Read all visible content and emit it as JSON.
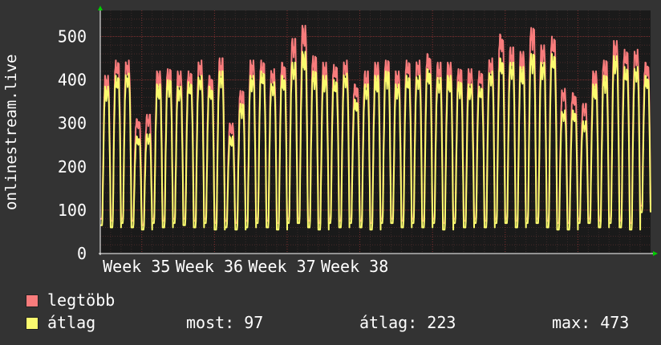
{
  "chart_data": {
    "type": "line",
    "title": "",
    "ylabel": "onlinestream.live",
    "ylim": [
      0,
      560
    ],
    "yticks": [
      0,
      100,
      200,
      300,
      400,
      500
    ],
    "xticks": [
      "Week 35",
      "Week 36",
      "Week 37",
      "Week 38"
    ],
    "grid": true,
    "legend_position": "bottom-left",
    "series": [
      {
        "name": "legtöbb",
        "color": "#f87c7c",
        "daily_peaks": [
          410,
          445,
          445,
          310,
          320,
          420,
          425,
          420,
          420,
          445,
          410,
          450,
          300,
          375,
          445,
          445,
          425,
          440,
          495,
          525,
          455,
          440,
          435,
          445,
          390,
          420,
          440,
          445,
          420,
          445,
          445,
          460,
          440,
          440,
          425,
          425,
          420,
          450,
          505,
          475,
          465,
          520,
          480,
          500,
          380,
          370,
          345,
          420,
          445,
          490,
          470,
          470,
          440
        ],
        "daily_mins": [
          80,
          75,
          80,
          75,
          65,
          80,
          75,
          80,
          80,
          75,
          80,
          70,
          75,
          70,
          75,
          80,
          75,
          70,
          80,
          80,
          75,
          70,
          80,
          75,
          80,
          75,
          70,
          80,
          80,
          75,
          80,
          75,
          80,
          70,
          80,
          75,
          80,
          75,
          80,
          80,
          75,
          80,
          80,
          75,
          70,
          70,
          80,
          80,
          75,
          80,
          75,
          70,
          110
        ]
      },
      {
        "name": "átlag",
        "color": "#fbfb6f",
        "daily_peaks": [
          385,
          410,
          415,
          270,
          275,
          390,
          400,
          385,
          395,
          410,
          385,
          420,
          270,
          345,
          410,
          420,
          395,
          410,
          440,
          465,
          420,
          410,
          400,
          415,
          355,
          390,
          410,
          420,
          390,
          410,
          410,
          425,
          405,
          410,
          395,
          390,
          385,
          420,
          450,
          440,
          430,
          460,
          440,
          460,
          330,
          330,
          305,
          390,
          410,
          455,
          430,
          430,
          410
        ],
        "daily_mins": [
          65,
          60,
          70,
          60,
          55,
          70,
          60,
          70,
          65,
          60,
          70,
          55,
          60,
          55,
          60,
          70,
          60,
          55,
          70,
          70,
          60,
          55,
          70,
          60,
          70,
          60,
          55,
          70,
          70,
          60,
          70,
          60,
          70,
          55,
          70,
          60,
          70,
          60,
          70,
          70,
          60,
          70,
          70,
          60,
          55,
          55,
          70,
          70,
          60,
          70,
          60,
          55,
          95
        ]
      }
    ]
  },
  "legend": {
    "max_label": "legtöbb",
    "avg_label": "átlag",
    "current": "most: 97",
    "average": "átlag: 223",
    "maximum": "max: 473"
  }
}
